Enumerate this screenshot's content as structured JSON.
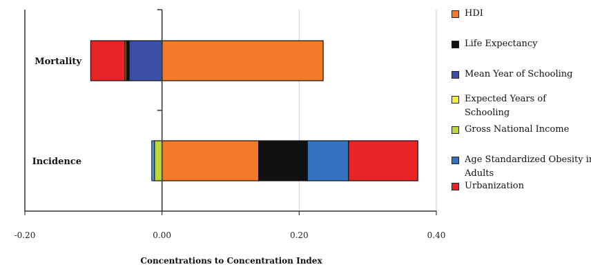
{
  "chart_data": {
    "type": "bar",
    "orientation": "horizontal",
    "stacked": true,
    "title": "",
    "xlabel": "Concentrations to Concentration Index",
    "ylabel": "",
    "xlim": [
      -0.2,
      0.4
    ],
    "xticks": [
      "-0.20",
      "0.00",
      "0.20",
      "0.40"
    ],
    "xtick_values": [
      -0.2,
      0.0,
      0.2,
      0.4
    ],
    "grid": "vertical",
    "legend": "right",
    "categories": [
      "Mortality",
      "Incidence"
    ],
    "series": [
      {
        "name": "HDI",
        "color": "#f47a2a",
        "values": [
          0.235,
          0.141
        ]
      },
      {
        "name": "Life Expectancy",
        "color": "#111111",
        "values": [
          -0.003,
          0.071
        ]
      },
      {
        "name": "Mean Year of Schooling",
        "color": "#3a4fa5",
        "values": [
          -0.048,
          0.0
        ]
      },
      {
        "name": "Expected Years of Schooling",
        "color": "#f2ef3a",
        "values": [
          -0.001,
          0.0
        ]
      },
      {
        "name": "Gross National Income",
        "color": "#bdd63a",
        "values": [
          -0.002,
          -0.011
        ]
      },
      {
        "name": "Age Standardized Obesity in Adults",
        "color": "#3373bf",
        "values": [
          0.0,
          0.06
        ]
      },
      {
        "name": "Urbanization",
        "color": "#e82428",
        "values": [
          -0.05,
          0.101
        ]
      }
    ],
    "negative_values_extra": [
      0.0,
      -0.004
    ]
  }
}
